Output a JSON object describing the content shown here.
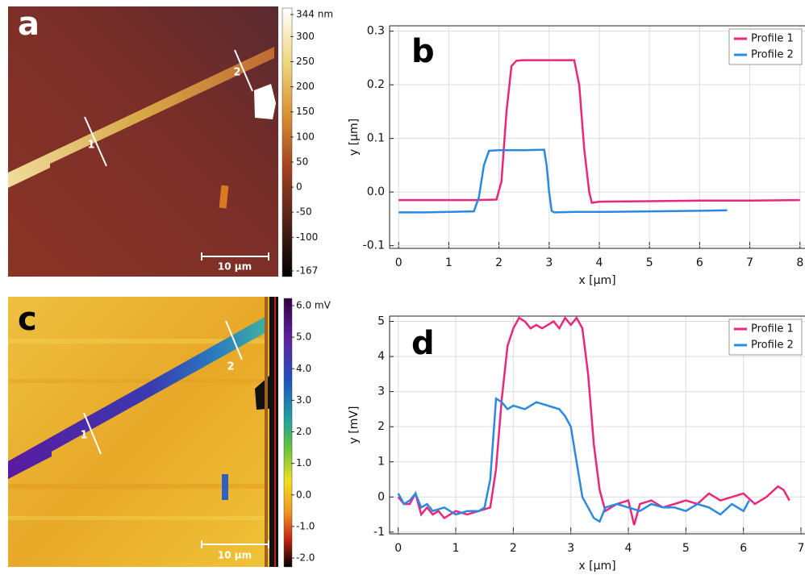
{
  "chart_data": [
    {
      "type": "image",
      "panel_label": "a",
      "annotations": [
        "1",
        "2"
      ],
      "scale_bar": "10 µm",
      "colorbar_ticks": [
        {
          "value": 344,
          "label": "344 nm"
        },
        300,
        250,
        200,
        150,
        100,
        50,
        0,
        -50,
        -100,
        -167
      ]
    },
    {
      "type": "line",
      "panel_label": "b",
      "x_label": "x [µm]",
      "y_label": "y [µm]",
      "xlim": [
        -0.18,
        8.1
      ],
      "ylim": [
        -0.105,
        0.31
      ],
      "xticks": [
        0,
        1,
        2,
        3,
        4,
        5,
        6,
        7,
        8
      ],
      "yticks": [
        -0.1,
        {
          "value": 0,
          "label": "0.0"
        },
        0.1,
        0.2,
        0.3
      ],
      "grid": true,
      "legend": "upper right",
      "series": [
        {
          "name": "Profile 1",
          "color": "#e8287a",
          "x": [
            0,
            0.5,
            1,
            1.5,
            1.95,
            2.05,
            2.15,
            2.25,
            2.35,
            2.5,
            3,
            3.5,
            3.6,
            3.7,
            3.8,
            3.85,
            4,
            5,
            6,
            7,
            8
          ],
          "values": [
            -0.015,
            -0.015,
            -0.015,
            -0.015,
            -0.014,
            0.02,
            0.15,
            0.235,
            0.245,
            0.246,
            0.246,
            0.246,
            0.2,
            0.08,
            0.0,
            -0.02,
            -0.018,
            -0.017,
            -0.016,
            -0.016,
            -0.015
          ]
        },
        {
          "name": "Profile 2",
          "color": "#2a8ae0",
          "x": [
            0,
            0.5,
            1,
            1.5,
            1.6,
            1.7,
            1.8,
            2,
            2.5,
            2.9,
            2.95,
            3.0,
            3.05,
            3.1,
            3.5,
            4,
            5,
            6,
            6.55
          ],
          "values": [
            -0.038,
            -0.038,
            -0.037,
            -0.036,
            -0.01,
            0.05,
            0.077,
            0.078,
            0.078,
            0.079,
            0.05,
            0.0,
            -0.035,
            -0.038,
            -0.037,
            -0.037,
            -0.036,
            -0.035,
            -0.034
          ]
        }
      ]
    },
    {
      "type": "image",
      "panel_label": "c",
      "annotations": [
        "1",
        "2"
      ],
      "scale_bar": "10 µm",
      "colorbar_ticks": [
        {
          "value": 6,
          "label": "6.0 mV"
        },
        {
          "value": 5,
          "label": "5.0"
        },
        {
          "value": 4,
          "label": "4.0"
        },
        {
          "value": 3,
          "label": "3.0"
        },
        {
          "value": 2,
          "label": "2.0"
        },
        {
          "value": 1,
          "label": "1.0"
        },
        {
          "value": 0,
          "label": "0.0"
        },
        {
          "value": -1,
          "label": "-1.0"
        },
        {
          "value": -2,
          "label": "-2.0"
        }
      ]
    },
    {
      "type": "line",
      "panel_label": "d",
      "x_label": "x [µm]",
      "y_label": "y [mV]",
      "xlim": [
        -0.15,
        7.07
      ],
      "ylim": [
        -1.05,
        5.15
      ],
      "xticks": [
        0,
        1,
        2,
        3,
        4,
        5,
        6,
        7
      ],
      "yticks": [
        -1,
        0,
        1,
        2,
        3,
        4,
        5
      ],
      "grid": true,
      "legend": "upper right",
      "series": [
        {
          "name": "Profile 1",
          "color": "#e8287a",
          "x": [
            0,
            0.1,
            0.2,
            0.3,
            0.4,
            0.5,
            0.6,
            0.7,
            0.8,
            0.9,
            1.0,
            1.2,
            1.4,
            1.6,
            1.7,
            1.8,
            1.9,
            2.0,
            2.1,
            2.2,
            2.3,
            2.4,
            2.5,
            2.6,
            2.7,
            2.8,
            2.9,
            3.0,
            3.1,
            3.2,
            3.3,
            3.4,
            3.5,
            3.6,
            3.8,
            4.0,
            4.1,
            4.2,
            4.4,
            4.6,
            4.8,
            5.0,
            5.2,
            5.4,
            5.6,
            5.8,
            6.0,
            6.2,
            6.4,
            6.6,
            6.7,
            6.8
          ],
          "values": [
            0,
            -0.2,
            -0.2,
            0.1,
            -0.5,
            -0.3,
            -0.5,
            -0.4,
            -0.6,
            -0.5,
            -0.4,
            -0.5,
            -0.4,
            -0.3,
            0.8,
            2.8,
            4.3,
            4.8,
            5.1,
            5.0,
            4.8,
            4.9,
            4.8,
            4.9,
            5.0,
            4.8,
            5.1,
            4.9,
            5.1,
            4.8,
            3.5,
            1.5,
            0.2,
            -0.4,
            -0.2,
            -0.1,
            -0.8,
            -0.2,
            -0.1,
            -0.3,
            -0.2,
            -0.1,
            -0.2,
            0.1,
            -0.1,
            0.0,
            0.1,
            -0.2,
            0.0,
            0.3,
            0.2,
            -0.1
          ]
        },
        {
          "name": "Profile 2",
          "color": "#2a8ae0",
          "x": [
            0,
            0.1,
            0.2,
            0.3,
            0.4,
            0.5,
            0.6,
            0.8,
            1.0,
            1.2,
            1.4,
            1.5,
            1.6,
            1.7,
            1.8,
            1.9,
            2.0,
            2.2,
            2.4,
            2.6,
            2.8,
            2.9,
            3.0,
            3.1,
            3.2,
            3.3,
            3.4,
            3.5,
            3.6,
            3.8,
            4.0,
            4.2,
            4.4,
            4.6,
            4.8,
            5.0,
            5.2,
            5.4,
            5.6,
            5.8,
            6.0,
            6.1
          ],
          "values": [
            0.1,
            -0.2,
            -0.1,
            0.1,
            -0.3,
            -0.2,
            -0.4,
            -0.3,
            -0.5,
            -0.4,
            -0.4,
            -0.3,
            0.5,
            2.8,
            2.7,
            2.5,
            2.6,
            2.5,
            2.7,
            2.6,
            2.5,
            2.3,
            2.0,
            1.0,
            0.0,
            -0.3,
            -0.6,
            -0.7,
            -0.3,
            -0.2,
            -0.3,
            -0.4,
            -0.2,
            -0.3,
            -0.3,
            -0.4,
            -0.2,
            -0.3,
            -0.5,
            -0.2,
            -0.4,
            -0.1
          ]
        }
      ]
    }
  ]
}
